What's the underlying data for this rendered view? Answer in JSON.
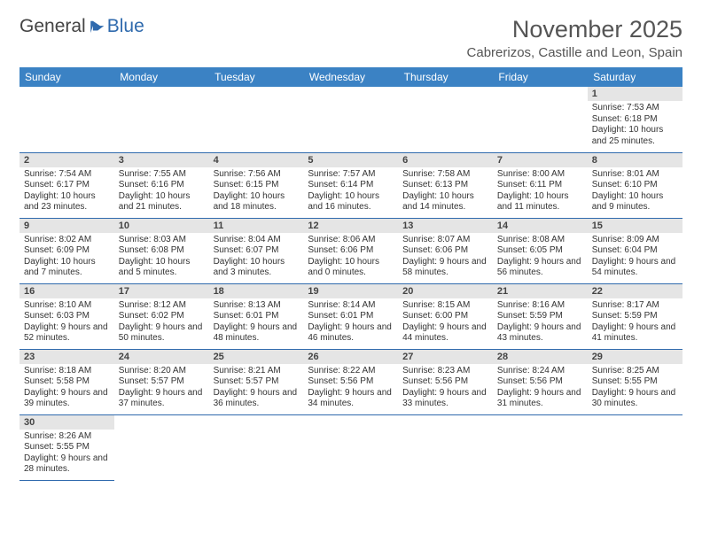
{
  "brand": {
    "word1": "General",
    "word2": "Blue"
  },
  "title": "November 2025",
  "location": "Cabrerizos, Castille and Leon, Spain",
  "weekdays": [
    "Sunday",
    "Monday",
    "Tuesday",
    "Wednesday",
    "Thursday",
    "Friday",
    "Saturday"
  ],
  "colors": {
    "headerBar": "#3b82c4",
    "dayStrip": "#e5e5e5",
    "rule": "#2f6aad",
    "brandBlue": "#2f6aad"
  },
  "layout": {
    "leadingBlanks": 6,
    "totalCells": 42
  },
  "labels": {
    "sunrise": "Sunrise:",
    "sunset": "Sunset:",
    "daylight": "Daylight:"
  },
  "days": [
    {
      "n": 1,
      "sunrise": "7:53 AM",
      "sunset": "6:18 PM",
      "dl": "10 hours and 25 minutes."
    },
    {
      "n": 2,
      "sunrise": "7:54 AM",
      "sunset": "6:17 PM",
      "dl": "10 hours and 23 minutes."
    },
    {
      "n": 3,
      "sunrise": "7:55 AM",
      "sunset": "6:16 PM",
      "dl": "10 hours and 21 minutes."
    },
    {
      "n": 4,
      "sunrise": "7:56 AM",
      "sunset": "6:15 PM",
      "dl": "10 hours and 18 minutes."
    },
    {
      "n": 5,
      "sunrise": "7:57 AM",
      "sunset": "6:14 PM",
      "dl": "10 hours and 16 minutes."
    },
    {
      "n": 6,
      "sunrise": "7:58 AM",
      "sunset": "6:13 PM",
      "dl": "10 hours and 14 minutes."
    },
    {
      "n": 7,
      "sunrise": "8:00 AM",
      "sunset": "6:11 PM",
      "dl": "10 hours and 11 minutes."
    },
    {
      "n": 8,
      "sunrise": "8:01 AM",
      "sunset": "6:10 PM",
      "dl": "10 hours and 9 minutes."
    },
    {
      "n": 9,
      "sunrise": "8:02 AM",
      "sunset": "6:09 PM",
      "dl": "10 hours and 7 minutes."
    },
    {
      "n": 10,
      "sunrise": "8:03 AM",
      "sunset": "6:08 PM",
      "dl": "10 hours and 5 minutes."
    },
    {
      "n": 11,
      "sunrise": "8:04 AM",
      "sunset": "6:07 PM",
      "dl": "10 hours and 3 minutes."
    },
    {
      "n": 12,
      "sunrise": "8:06 AM",
      "sunset": "6:06 PM",
      "dl": "10 hours and 0 minutes."
    },
    {
      "n": 13,
      "sunrise": "8:07 AM",
      "sunset": "6:06 PM",
      "dl": "9 hours and 58 minutes."
    },
    {
      "n": 14,
      "sunrise": "8:08 AM",
      "sunset": "6:05 PM",
      "dl": "9 hours and 56 minutes."
    },
    {
      "n": 15,
      "sunrise": "8:09 AM",
      "sunset": "6:04 PM",
      "dl": "9 hours and 54 minutes."
    },
    {
      "n": 16,
      "sunrise": "8:10 AM",
      "sunset": "6:03 PM",
      "dl": "9 hours and 52 minutes."
    },
    {
      "n": 17,
      "sunrise": "8:12 AM",
      "sunset": "6:02 PM",
      "dl": "9 hours and 50 minutes."
    },
    {
      "n": 18,
      "sunrise": "8:13 AM",
      "sunset": "6:01 PM",
      "dl": "9 hours and 48 minutes."
    },
    {
      "n": 19,
      "sunrise": "8:14 AM",
      "sunset": "6:01 PM",
      "dl": "9 hours and 46 minutes."
    },
    {
      "n": 20,
      "sunrise": "8:15 AM",
      "sunset": "6:00 PM",
      "dl": "9 hours and 44 minutes."
    },
    {
      "n": 21,
      "sunrise": "8:16 AM",
      "sunset": "5:59 PM",
      "dl": "9 hours and 43 minutes."
    },
    {
      "n": 22,
      "sunrise": "8:17 AM",
      "sunset": "5:59 PM",
      "dl": "9 hours and 41 minutes."
    },
    {
      "n": 23,
      "sunrise": "8:18 AM",
      "sunset": "5:58 PM",
      "dl": "9 hours and 39 minutes."
    },
    {
      "n": 24,
      "sunrise": "8:20 AM",
      "sunset": "5:57 PM",
      "dl": "9 hours and 37 minutes."
    },
    {
      "n": 25,
      "sunrise": "8:21 AM",
      "sunset": "5:57 PM",
      "dl": "9 hours and 36 minutes."
    },
    {
      "n": 26,
      "sunrise": "8:22 AM",
      "sunset": "5:56 PM",
      "dl": "9 hours and 34 minutes."
    },
    {
      "n": 27,
      "sunrise": "8:23 AM",
      "sunset": "5:56 PM",
      "dl": "9 hours and 33 minutes."
    },
    {
      "n": 28,
      "sunrise": "8:24 AM",
      "sunset": "5:56 PM",
      "dl": "9 hours and 31 minutes."
    },
    {
      "n": 29,
      "sunrise": "8:25 AM",
      "sunset": "5:55 PM",
      "dl": "9 hours and 30 minutes."
    },
    {
      "n": 30,
      "sunrise": "8:26 AM",
      "sunset": "5:55 PM",
      "dl": "9 hours and 28 minutes."
    }
  ]
}
